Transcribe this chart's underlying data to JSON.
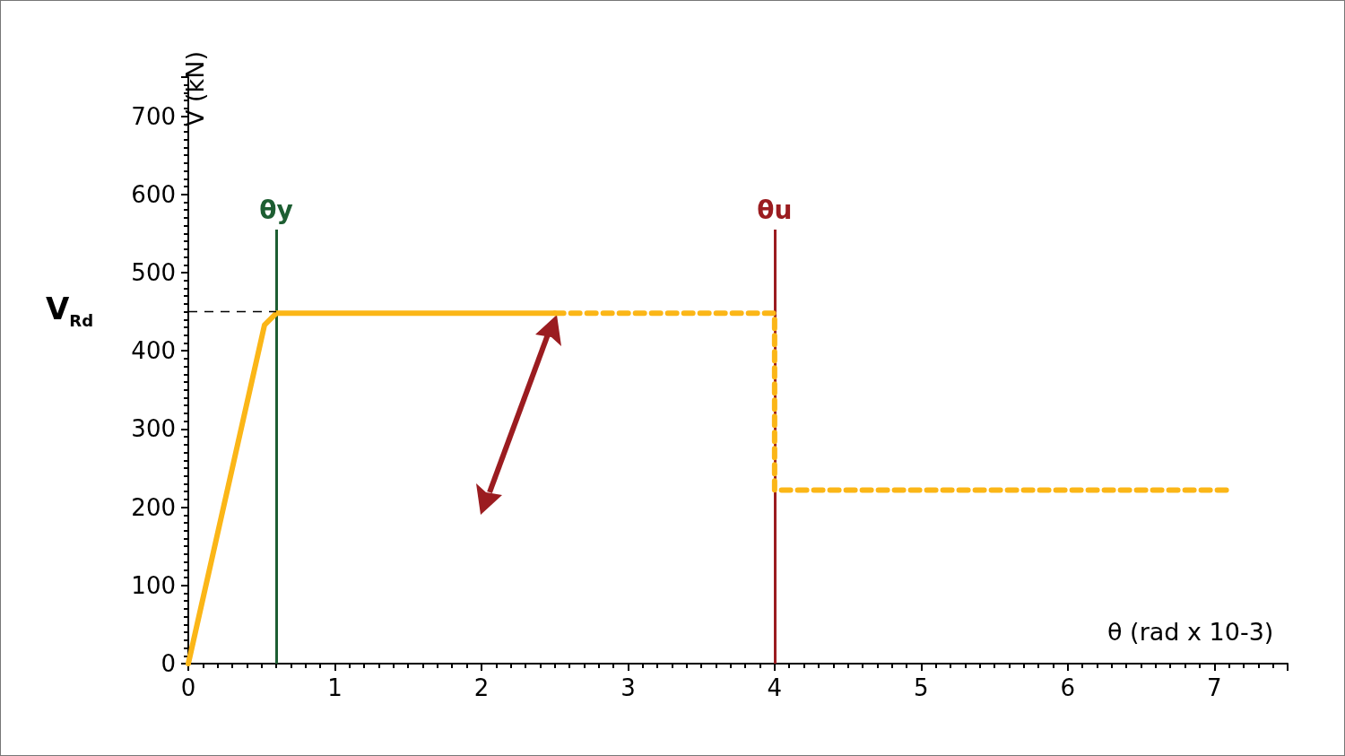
{
  "chart_data": {
    "type": "line",
    "xlabel": "θ (rad x 10-3)",
    "ylabel": "V (kN)",
    "series": [
      {
        "color": "#fbb617",
        "line_style": "solid",
        "x": [
          0,
          0.52,
          0.6,
          2.5
        ],
        "values": [
          0,
          433,
          448,
          448
        ]
      },
      {
        "color": "#fbb617",
        "line_style": "dashed",
        "x": [
          2.5,
          4,
          4,
          7.1
        ],
        "values": [
          448,
          448,
          222,
          222
        ]
      },
      {
        "color": "#000000",
        "line_style": "dashed",
        "x": [
          0,
          0.6
        ],
        "values": [
          450,
          450
        ]
      }
    ],
    "xlim": [
      0,
      7.5
    ],
    "xticks": [
      0,
      1,
      2,
      3,
      4,
      5,
      6,
      7
    ],
    "ylim": [
      0,
      750
    ],
    "yticks": [
      0,
      100,
      200,
      300,
      400,
      500,
      600,
      700
    ],
    "ref_lines": [
      {
        "axis": "x",
        "value": 0.6,
        "label": "θy",
        "color": "#1d5e32",
        "line_style": "solid"
      },
      {
        "axis": "x",
        "value": 4,
        "label": "θu",
        "color": "#9b1c20",
        "line_style": "solid"
      }
    ],
    "annotations": [
      "V$_{Rd}$"
    ],
    "grid": false,
    "marker": "none"
  }
}
